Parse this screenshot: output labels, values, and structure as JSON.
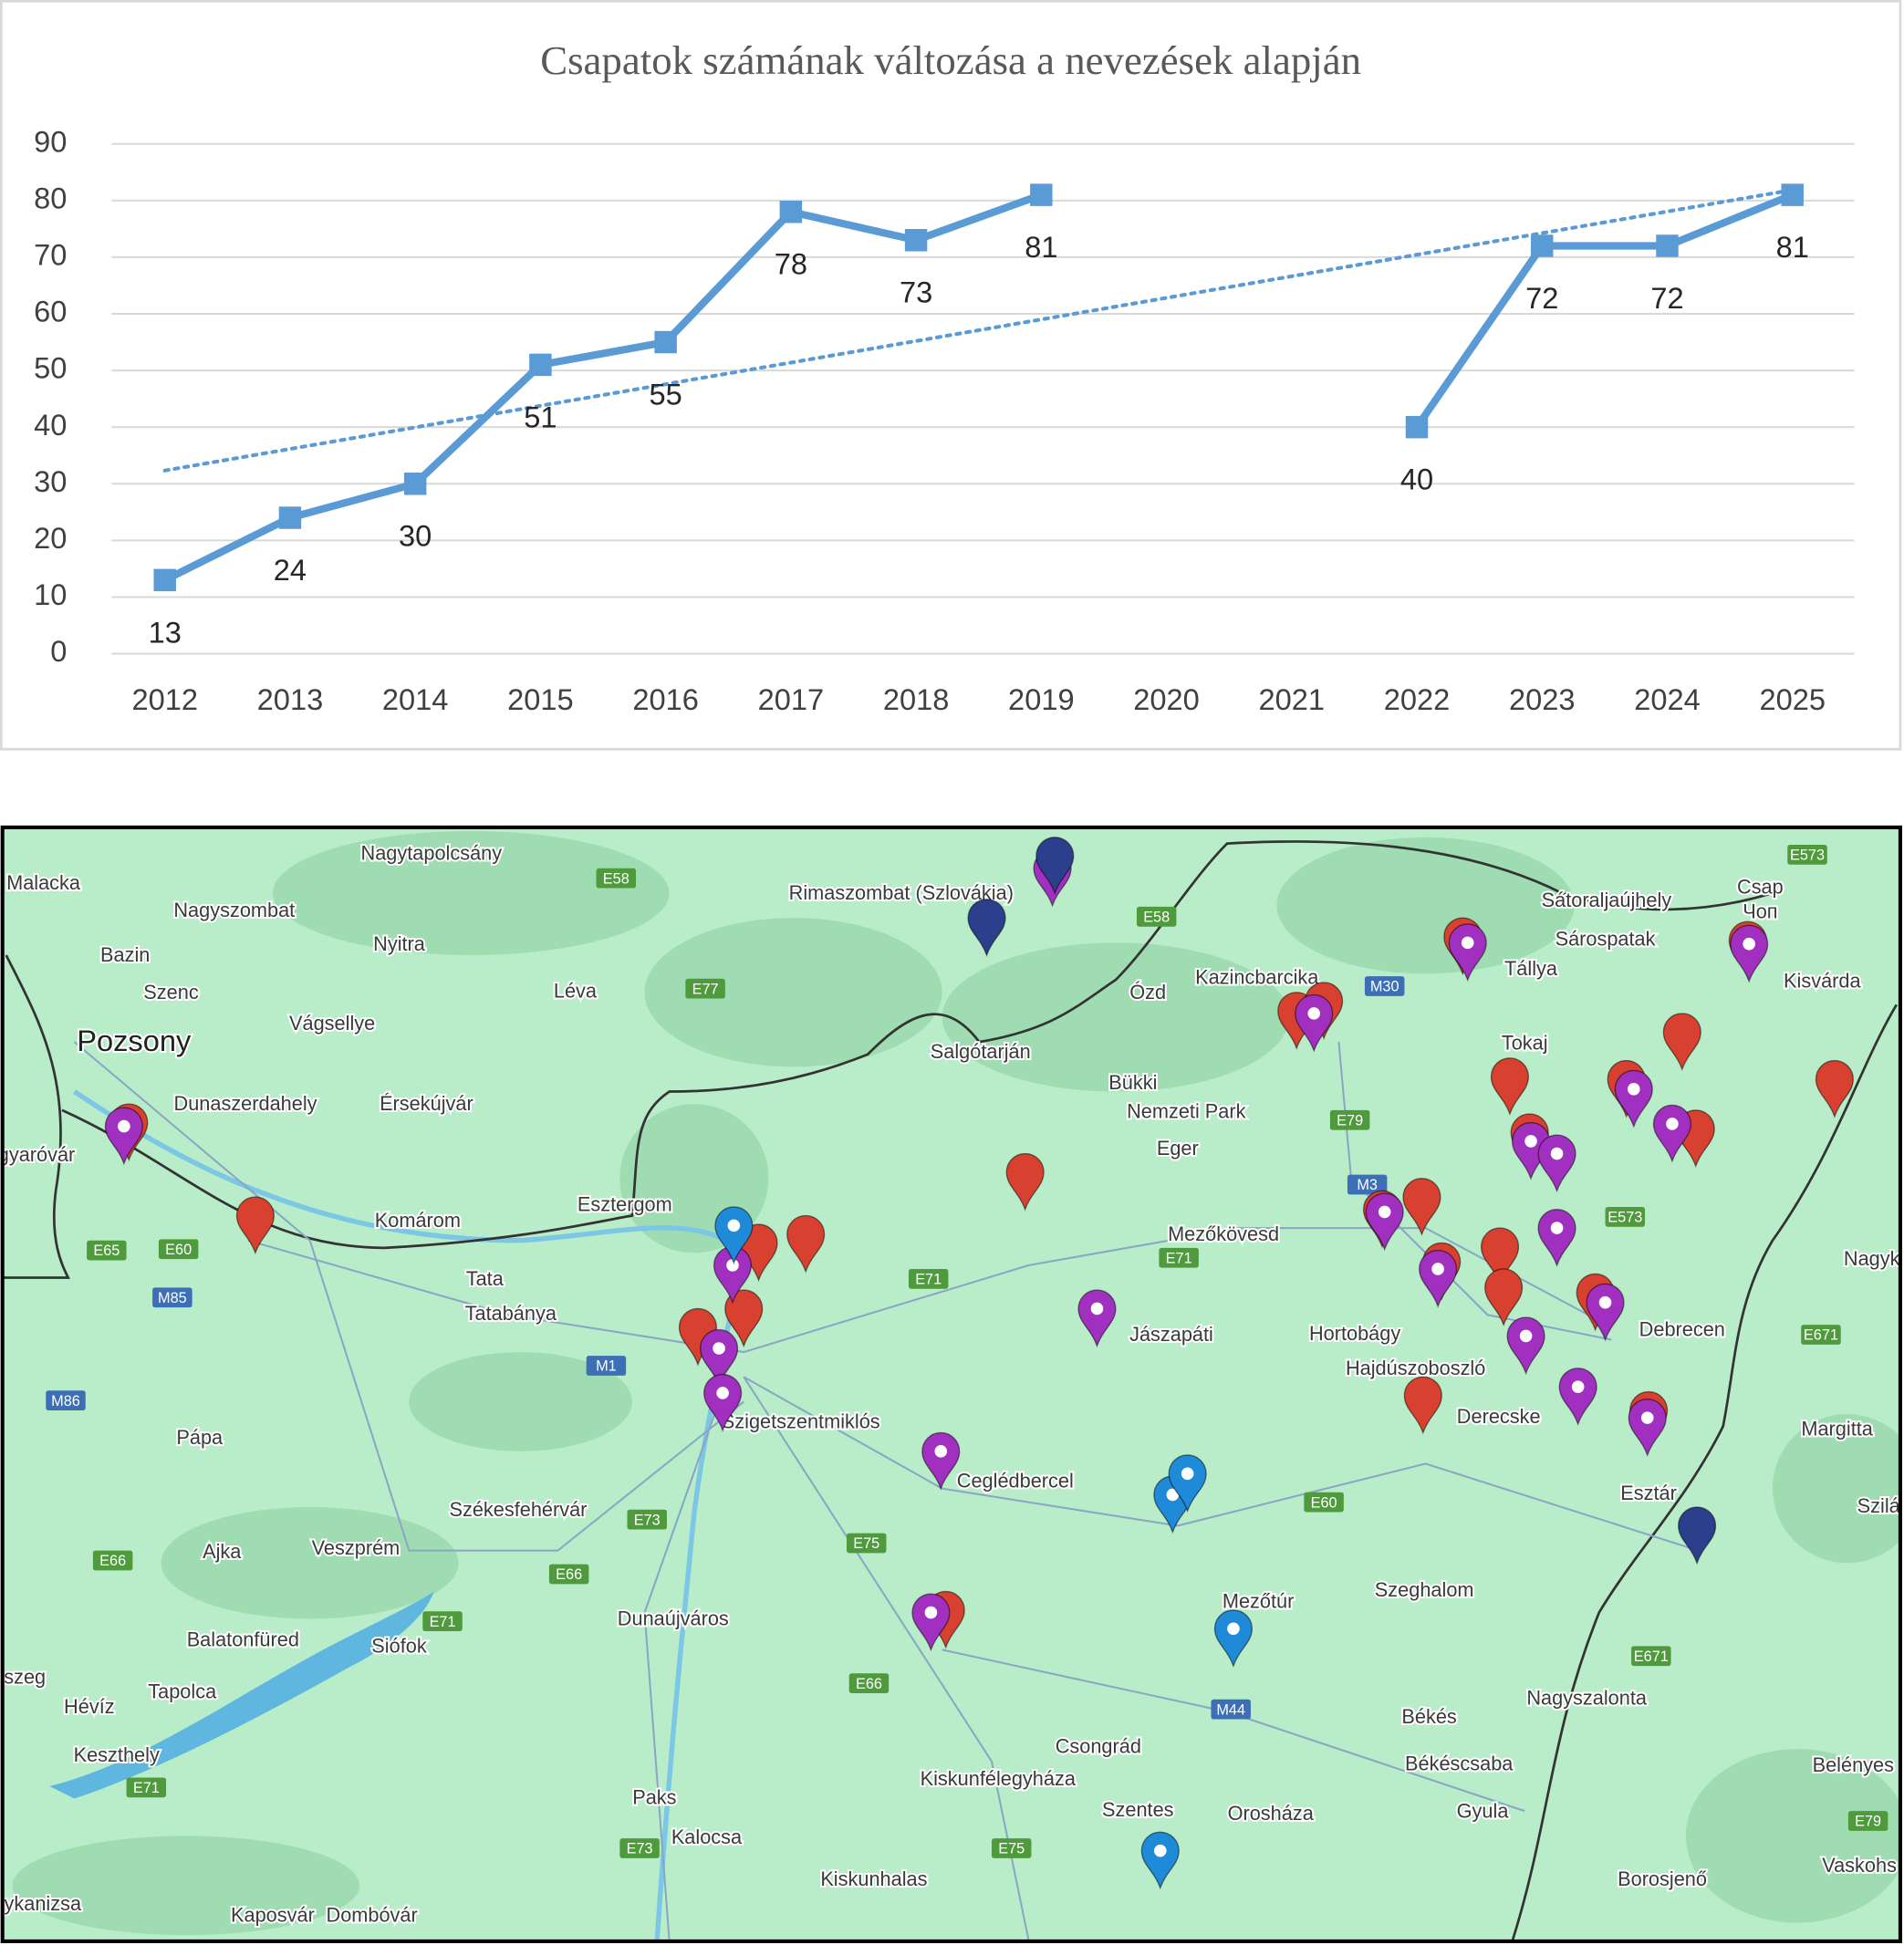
{
  "chart_data": {
    "type": "line",
    "title": "Csapatok számának változása a nevezések alapján",
    "categories": [
      "2012",
      "2013",
      "2014",
      "2015",
      "2016",
      "2017",
      "2018",
      "2019",
      "2020",
      "2021",
      "2022",
      "2023",
      "2024",
      "2025"
    ],
    "values": [
      13,
      24,
      30,
      51,
      55,
      78,
      73,
      81,
      null,
      null,
      40,
      72,
      72,
      81
    ],
    "color": "#5b9bd5",
    "ylim": [
      0,
      90
    ],
    "yticks": [
      0,
      10,
      20,
      30,
      40,
      50,
      60,
      70,
      80,
      90
    ],
    "grid": true,
    "markers": "square",
    "data_labels": true,
    "trendline": "linear"
  },
  "map": {
    "places": [
      "Nagytapolcsány",
      "Malacka",
      "Nagyszombat",
      "Rimaszombat (Szlovákia)",
      "Bazin",
      "Nyitra",
      "Sátoraljaújhely",
      "Sárospatak",
      "Csap",
      "Чоп",
      "Szenc",
      "Léva",
      "Kazincbarcika",
      "Tállya",
      "Kisvárda",
      "Pozsony",
      "Vágsellye",
      "Salgótarján",
      "Bükki",
      "Nemzeti Park",
      "Tokaj",
      "Dunaszerdahely",
      "Érsekújvár",
      "Eger",
      "Esztergom",
      "Komárom",
      "Mezőkövesd",
      "Tata",
      "Tatabánya",
      "Hortobágy",
      "Jászapáti",
      "Debrecen",
      "Hajdúszoboszló",
      "Szigetszentmiklós",
      "Derecske",
      "Margitta",
      "Ceglédbercel",
      "Esztár",
      "Pápa",
      "Székesfehérvár",
      "Ajka",
      "Veszprém",
      "Mezőtúr",
      "Szeghalom",
      "Dunaújváros",
      "Balatonfüred",
      "Siófok",
      "Tapolca",
      "Nagyszalonta",
      "Hévíz",
      "Keszthely",
      "Békés",
      "Csongrád",
      "Kiskunfélegyháza",
      "Békéscsaba",
      "Szentes",
      "Orosháza",
      "Gyula",
      "Belényes",
      "Paks",
      "Kalocsa",
      "Kiskunhalas",
      "Kaposvár",
      "Dombóvár",
      "Borosjenő",
      "Vaskohs",
      "agyaróvár",
      "szeg",
      "gykanizsa",
      "Nagyk",
      "Szilág",
      "Ózd"
    ],
    "roads": [
      "E58",
      "E58",
      "E77",
      "M30",
      "E79",
      "M3",
      "E573",
      "E573",
      "E71",
      "E71",
      "E60",
      "E671",
      "E671",
      "E65",
      "E60",
      "M85",
      "M86",
      "M1",
      "E73",
      "E75",
      "E66",
      "E66",
      "E71",
      "E66",
      "M44",
      "E71",
      "E73",
      "E75",
      "E79"
    ]
  }
}
